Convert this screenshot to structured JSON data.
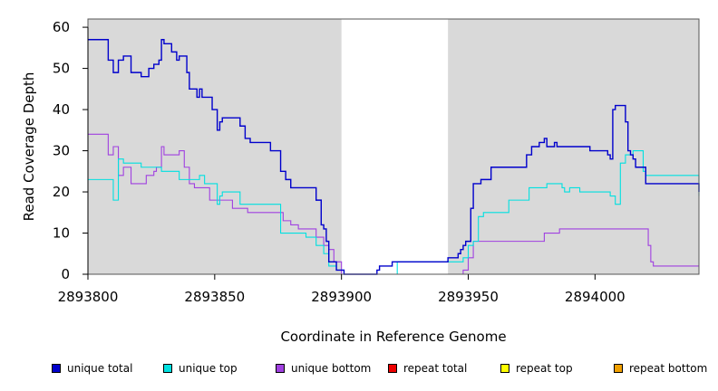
{
  "chart_data": {
    "type": "line",
    "xlabel": "Coordinate in Reference Genome",
    "ylabel": "Read Coverage Depth",
    "xlim": [
      2893800,
      2894041
    ],
    "ylim": [
      0,
      62
    ],
    "x_ticks": [
      2893800,
      2893850,
      2893900,
      2893950,
      2894000
    ],
    "x_tick_labels": [
      "2893800",
      "2893850",
      "2893900",
      "2893950",
      "2894000"
    ],
    "y_ticks": [
      0,
      10,
      20,
      30,
      40,
      50,
      60
    ],
    "y_tick_labels": [
      "0",
      "10",
      "20",
      "30",
      "40",
      "50",
      "60"
    ],
    "shaded_regions": [
      [
        2893800,
        2893900
      ],
      [
        2893942,
        2894041
      ]
    ],
    "grid": false,
    "legend_position": "bottom",
    "series": [
      {
        "name": "unique total",
        "color": "#0000cc",
        "x": [
          2893800,
          2893808,
          2893810,
          2893812,
          2893814,
          2893817,
          2893821,
          2893824,
          2893826,
          2893828,
          2893829,
          2893830,
          2893833,
          2893835,
          2893836,
          2893839,
          2893840,
          2893843,
          2893844,
          2893845,
          2893849,
          2893851,
          2893852,
          2893853,
          2893860,
          2893862,
          2893864,
          2893869,
          2893872,
          2893876,
          2893878,
          2893880,
          2893883,
          2893890,
          2893892,
          2893893,
          2893894,
          2893895,
          2893898,
          2893901,
          2893906,
          2893914,
          2893915,
          2893916,
          2893917,
          2893920,
          2893922,
          2893942,
          2893943,
          2893944,
          2893945,
          2893946,
          2893947,
          2893948,
          2893949,
          2893950,
          2893951,
          2893952,
          2893955,
          2893956,
          2893957,
          2893959,
          2893966,
          2893973,
          2893975,
          2893978,
          2893980,
          2893981,
          2893984,
          2893985,
          2893990,
          2893998,
          2893999,
          2894005,
          2894006,
          2894007,
          2894008,
          2894010,
          2894012,
          2894013,
          2894014,
          2894015,
          2894016,
          2894020,
          2894041
        ],
        "y": [
          57,
          52,
          49,
          52,
          53,
          49,
          48,
          50,
          51,
          52,
          57,
          56,
          54,
          52,
          53,
          49,
          45,
          43,
          45,
          43,
          40,
          35,
          37,
          38,
          36,
          33,
          32,
          32,
          30,
          25,
          23,
          21,
          21,
          18,
          12,
          11,
          8,
          3,
          1,
          0,
          0,
          1,
          2,
          2,
          2,
          3,
          3,
          4,
          4,
          4,
          4,
          5,
          6,
          7,
          8,
          8,
          16,
          22,
          23,
          23,
          23,
          26,
          26,
          29,
          31,
          32,
          33,
          31,
          32,
          31,
          31,
          30,
          30,
          29,
          28,
          40,
          41,
          41,
          37,
          30,
          29,
          28,
          26,
          22,
          20
        ]
      },
      {
        "name": "unique top",
        "color": "#00e0e0",
        "x": [
          2893800,
          2893810,
          2893812,
          2893814,
          2893821,
          2893829,
          2893832,
          2893836,
          2893844,
          2893846,
          2893851,
          2893852,
          2893853,
          2893856,
          2893860,
          2893865,
          2893876,
          2893880,
          2893886,
          2893890,
          2893893,
          2893895,
          2893898,
          2893901,
          2893906,
          2893922,
          2893942,
          2893946,
          2893948,
          2893950,
          2893952,
          2893954,
          2893956,
          2893958,
          2893966,
          2893972,
          2893974,
          2893978,
          2893981,
          2893984,
          2893987,
          2893988,
          2893990,
          2893994,
          2893998,
          2894006,
          2894007,
          2894008,
          2894010,
          2894012,
          2894015,
          2894019,
          2894020,
          2894041
        ],
        "y": [
          23,
          18,
          28,
          27,
          26,
          25,
          25,
          23,
          24,
          22,
          17,
          19,
          20,
          20,
          17,
          17,
          10,
          10,
          9,
          7,
          5,
          2,
          1,
          0,
          0,
          3,
          3,
          3,
          4,
          7,
          8,
          14,
          15,
          15,
          18,
          18,
          21,
          21,
          22,
          22,
          21,
          20,
          21,
          20,
          20,
          19,
          19,
          17,
          27,
          29,
          30,
          25,
          24,
          19
        ]
      },
      {
        "name": "unique bottom",
        "color": "#a040e0",
        "x": [
          2893800,
          2893808,
          2893810,
          2893812,
          2893814,
          2893817,
          2893823,
          2893826,
          2893827,
          2893829,
          2893830,
          2893833,
          2893836,
          2893838,
          2893840,
          2893842,
          2893848,
          2893856,
          2893857,
          2893863,
          2893871,
          2893877,
          2893880,
          2893883,
          2893890,
          2893893,
          2893895,
          2893897,
          2893900,
          2893942,
          2893948,
          2893950,
          2893952,
          2893954,
          2893978,
          2893980,
          2893981,
          2893983,
          2893986,
          2894020,
          2894021,
          2894022,
          2894023,
          2894041
        ],
        "y": [
          34,
          29,
          31,
          24,
          26,
          22,
          24,
          25,
          26,
          31,
          29,
          29,
          30,
          26,
          22,
          21,
          18,
          18,
          16,
          15,
          15,
          13,
          12,
          11,
          9,
          7,
          6,
          3,
          0,
          0,
          1,
          4,
          8,
          8,
          8,
          10,
          10,
          10,
          11,
          11,
          7,
          3,
          2,
          2
        ]
      },
      {
        "name": "repeat total",
        "color": "#ee0000",
        "x": [
          2893800,
          2894041
        ],
        "y": [
          0,
          0
        ]
      },
      {
        "name": "repeat top",
        "color": "#ffff00",
        "x": [
          2893800,
          2894041
        ],
        "y": [
          0,
          0
        ]
      },
      {
        "name": "repeat bottom",
        "color": "#f0a000",
        "x": [
          2893800,
          2894041
        ],
        "y": [
          0,
          0
        ]
      }
    ]
  },
  "legend": [
    {
      "label": "unique total",
      "color": "#0000cc"
    },
    {
      "label": "unique top",
      "color": "#00e0e0"
    },
    {
      "label": "unique bottom",
      "color": "#a040e0"
    },
    {
      "label": "repeat total",
      "color": "#ee0000"
    },
    {
      "label": "repeat top",
      "color": "#ffff00"
    },
    {
      "label": "repeat bottom",
      "color": "#f0a000"
    }
  ]
}
